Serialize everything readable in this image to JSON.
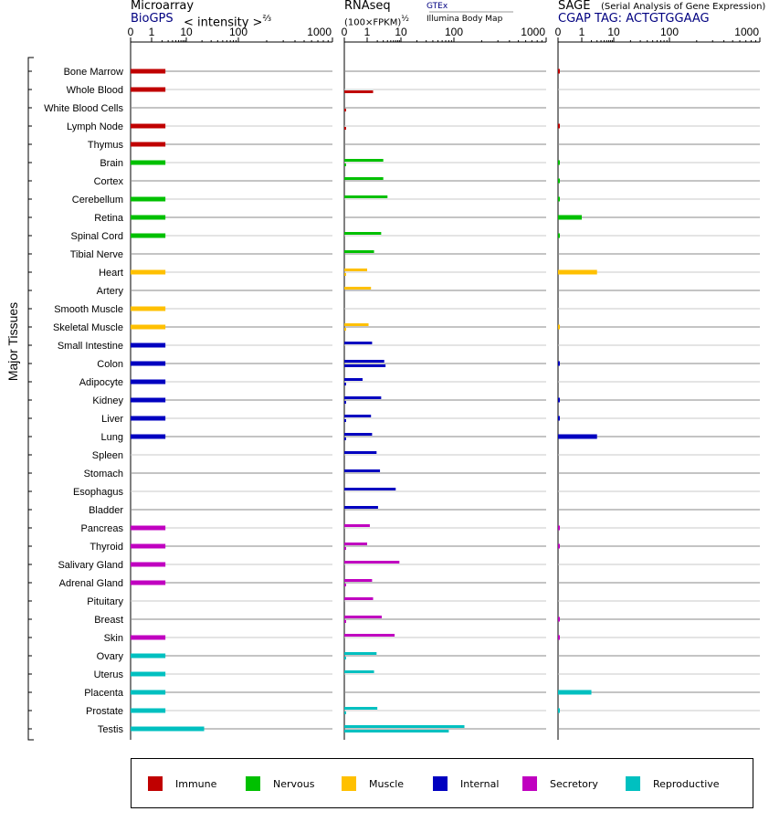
{
  "panels": {
    "microarray": {
      "title": "Microarray",
      "source": "BioGPS",
      "unit_text": "< intensity >",
      "exponent": "⅔"
    },
    "rnaseq": {
      "title": "RNAseq",
      "unit_text": "(100×FPKM)",
      "exponent": "½",
      "sources": [
        "GTEx",
        "Illumina Body Map"
      ]
    },
    "sage": {
      "title": "SAGE",
      "subtitle": "(Serial Analysis of Gene Expression)",
      "tag_label": "CGAP TAG: ACTGTGGAAG"
    }
  },
  "y_group_label": "Major Tissues",
  "colors": {
    "Immune": "#c00000",
    "Nervous": "#00c000",
    "Muscle": "#ffc000",
    "Internal": "#0000c0",
    "Secretory": "#c000c0",
    "Reproductive": "#00c0c0"
  },
  "legend": [
    "Immune",
    "Nervous",
    "Muscle",
    "Internal",
    "Secretory",
    "Reproductive"
  ],
  "chart_data": {
    "type": "bar",
    "orientation": "horizontal",
    "x_ticks": [
      "0",
      "1",
      "10",
      "100",
      "1000"
    ],
    "xlim": [
      0,
      1000
    ],
    "x_scale": "log-like",
    "categories": [
      "Bone Marrow",
      "Whole Blood",
      "White Blood Cells",
      "Lymph Node",
      "Thymus",
      "Brain",
      "Cortex",
      "Cerebellum",
      "Retina",
      "Spinal Cord",
      "Tibial Nerve",
      "Heart",
      "Artery",
      "Smooth Muscle",
      "Skeletal Muscle",
      "Small Intestine",
      "Colon",
      "Adipocyte",
      "Kidney",
      "Liver",
      "Lung",
      "Spleen",
      "Stomach",
      "Esophagus",
      "Bladder",
      "Pancreas",
      "Thyroid",
      "Salivary Gland",
      "Adrenal Gland",
      "Pituitary",
      "Breast",
      "Skin",
      "Ovary",
      "Uterus",
      "Placenta",
      "Prostate",
      "Testis"
    ],
    "groups": [
      "Immune",
      "Immune",
      "Immune",
      "Immune",
      "Immune",
      "Nervous",
      "Nervous",
      "Nervous",
      "Nervous",
      "Nervous",
      "Nervous",
      "Muscle",
      "Muscle",
      "Muscle",
      "Muscle",
      "Internal",
      "Internal",
      "Internal",
      "Internal",
      "Internal",
      "Internal",
      "Internal",
      "Internal",
      "Internal",
      "Internal",
      "Secretory",
      "Secretory",
      "Secretory",
      "Secretory",
      "Secretory",
      "Secretory",
      "Secretory",
      "Reproductive",
      "Reproductive",
      "Reproductive",
      "Reproductive",
      "Reproductive"
    ],
    "series": [
      {
        "name": "Microarray",
        "values": [
          2.5,
          2.5,
          null,
          2.5,
          2.5,
          2.5,
          null,
          2.5,
          2.5,
          2.5,
          null,
          2.5,
          null,
          2.5,
          2.5,
          2.5,
          2.5,
          2.5,
          2.5,
          2.5,
          2.5,
          null,
          null,
          null,
          null,
          2.5,
          2.5,
          2.5,
          2.5,
          null,
          null,
          2.5,
          2.5,
          2.5,
          2.5,
          2.5,
          22
        ]
      },
      {
        "name": "GTEx",
        "values": [
          null,
          null,
          null,
          null,
          null,
          3,
          3,
          4,
          null,
          2.6,
          1.6,
          1,
          1.3,
          null,
          1.1,
          1.4,
          3.2,
          0.8,
          2.6,
          1.3,
          1.4,
          1.9,
          2.4,
          7,
          2.1,
          1.2,
          1,
          9,
          1.4,
          1.5,
          2.7,
          6.5,
          1.9,
          1.6,
          null,
          2.0,
          130
        ]
      },
      {
        "name": "Illumina Body Map",
        "values": [
          null,
          1.5,
          0.02,
          0.02,
          null,
          0.02,
          null,
          null,
          null,
          null,
          null,
          0.02,
          null,
          null,
          0.02,
          null,
          3.5,
          0.05,
          0.05,
          0.02,
          0.05,
          null,
          null,
          null,
          null,
          null,
          0.05,
          null,
          0.02,
          null,
          0.02,
          null,
          0.02,
          null,
          null,
          0.02,
          80
        ]
      },
      {
        "name": "SAGE",
        "values": [
          0.02,
          null,
          null,
          0.02,
          null,
          0.02,
          0.02,
          0.02,
          1,
          0.02,
          null,
          3,
          null,
          null,
          0.02,
          null,
          0.02,
          null,
          0.02,
          0.02,
          3,
          null,
          null,
          null,
          null,
          0.02,
          0.02,
          null,
          null,
          null,
          0.02,
          0.02,
          null,
          null,
          2,
          0.02,
          null
        ]
      }
    ]
  }
}
